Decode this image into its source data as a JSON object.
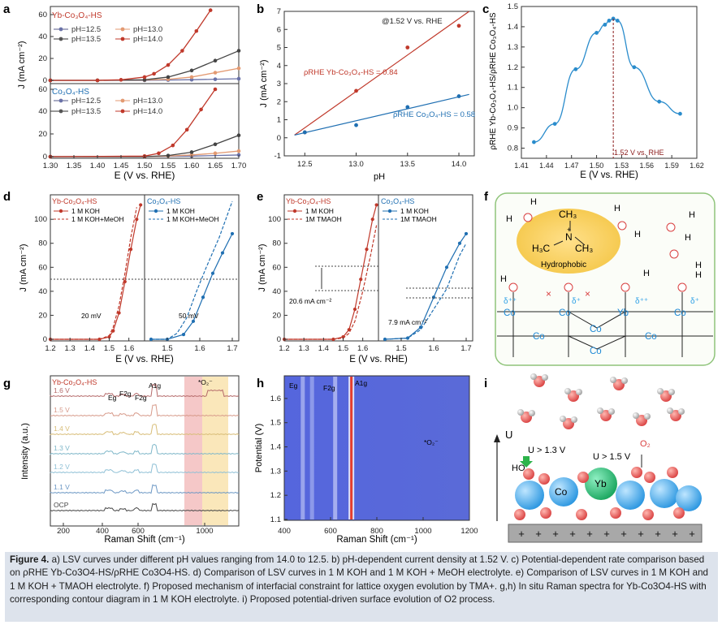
{
  "figure": {
    "panel_labels": {
      "a": "a",
      "b": "b",
      "c": "c",
      "d": "d",
      "e": "e",
      "f": "f",
      "g": "g",
      "h": "h",
      "i": "i"
    },
    "caption": {
      "label": "Figure 4.",
      "text": "a) LSV curves under different pH values ranging from 14.0 to 12.5. b) pH-dependent current density at 1.52 V. c) Potential-dependent rate comparison based on ρRHE Yb-Co3O4-HS/ρRHE Co3O4-HS. d) Comparison of LSV curves in 1 M KOH and 1 M KOH + MeOH electrolyte. e) Comparison of LSV curves in 1 M KOH and 1 M KOH + TMAOH electrolyte. f) Proposed mechanism of interfacial constraint for lattice oxygen evolution by TMA+. g,h) In situ Raman spectra for Yb-Co3O4-HS with corresponding contour diagram in 1 M KOH electrolyte. i) Proposed potential-driven surface evolution of O2 process."
    }
  },
  "panel_a": {
    "top_title": "Yb-Co₃O₄-HS",
    "bottom_title": "Co₃O₄-HS",
    "legend": [
      "pH=12.5",
      "pH=13.0",
      "pH=13.5",
      "pH=14.0"
    ],
    "ylabel": "J (mA cm⁻²)",
    "xlabel": "E (V vs. RHE)",
    "xticks": [
      "1.30",
      "1.35",
      "1.40",
      "1.45",
      "1.50",
      "1.55",
      "1.60",
      "1.65",
      "1.70"
    ],
    "yticks": [
      "0",
      "20",
      "40",
      "60"
    ]
  },
  "panel_b": {
    "annotation": "@1.52 V vs. RHE",
    "label_yb": "ρRHE Yb-Co₃O₄-HS = 0.84",
    "label_co": "ρRHE Co₃O₄-HS = 0.58",
    "xlabel": "pH",
    "ylabel": "J (mA cm⁻²)",
    "xticks": [
      "12.5",
      "13.0",
      "13.5",
      "14.0"
    ],
    "yticks": [
      "-1",
      "0",
      "1",
      "2",
      "3",
      "4",
      "5",
      "6",
      "7"
    ]
  },
  "panel_c": {
    "annotation": "1.52 V vs. RHE",
    "xlabel": "E (V vs. RHE)",
    "ylabel": "ρRHE Yb-Co₃O₄-HS/ρRHE Co₃O₄-HS",
    "xticks": [
      "1.41",
      "1.44",
      "1.47",
      "1.50",
      "1.53",
      "1.56",
      "1.59",
      "1.62"
    ],
    "yticks": [
      "0.8",
      "0.9",
      "1.0",
      "1.1",
      "1.2",
      "1.3",
      "1.4",
      "1.5"
    ]
  },
  "panel_d": {
    "left_title": "Yb-Co₃O₄-HS",
    "left_legend": [
      "1 M KOH",
      "1 M KOH+MeOH"
    ],
    "right_title": "Co₃O₄-HS",
    "right_legend": [
      "1 M KOH",
      "1 M KOH+MeOH"
    ],
    "ann_left": "20 mV",
    "ann_right": "50 mV",
    "ylabel": "J (mA cm⁻²)",
    "xlabel": "E (V vs. RHE)",
    "xticks": [
      "1.2",
      "1.3",
      "1.4",
      "1.5",
      "1.6",
      "1.5",
      "1.6",
      "1.7"
    ],
    "yticks": [
      "0",
      "20",
      "40",
      "60",
      "80",
      "100"
    ]
  },
  "panel_e": {
    "left_title": "Yb-Co₃O₄-HS",
    "left_legend": [
      "1 M KOH",
      "1M TMAOH"
    ],
    "right_title": "Co₃O₄-HS",
    "right_legend": [
      "1 M KOH",
      "1M TMAOH"
    ],
    "ann_left": "20.6 mA cm⁻²",
    "ann_right": "7.9 mA cm⁻²",
    "ylabel": "J (mA cm⁻²)",
    "xlabel": "E (V vs. RHE)",
    "xticks": [
      "1.2",
      "1.3",
      "1.4",
      "1.5",
      "1.6",
      "1.5",
      "1.6",
      "1.7"
    ],
    "yticks": [
      "0",
      "20",
      "40",
      "60",
      "80",
      "100"
    ]
  },
  "panel_f": {
    "ch3_top": "CH₃",
    "h3c": "H₃C",
    "ch3_right": "CH₃",
    "n": "N",
    "plus": "+",
    "hydrophobic": "Hydrophobic",
    "delta_pp": "δ⁺⁺",
    "delta_p": "δ⁺",
    "o": "O",
    "h": "H",
    "co": "Co",
    "yb": "Yb",
    "cross": "×"
  },
  "panel_g": {
    "title": "Yb-Co₃O₄-HS",
    "potentials": [
      "1.6 V",
      "1.5 V",
      "1.4 V",
      "1.3 V",
      "1.2 V",
      "1.1 V",
      "OCP"
    ],
    "peaks": [
      "Eg",
      "F2g",
      "F2g",
      "A1g",
      "*O₂⁻"
    ],
    "xlabel": "Raman Shift (cm⁻¹)",
    "ylabel": "Intensity (a.u.)",
    "xticks": [
      "200",
      "400",
      "600",
      "1000"
    ]
  },
  "panel_h": {
    "peaks": [
      "Eg",
      "F2g",
      "A1g",
      "*O₂⁻"
    ],
    "xlabel": "Raman Shift (cm⁻¹)",
    "ylabel": "Potential (V)",
    "xticks": [
      "400",
      "600",
      "800",
      "1000",
      "1200"
    ],
    "yticks": [
      "1.1",
      "1.2",
      "1.3",
      "1.4",
      "1.5",
      "1.6"
    ]
  },
  "panel_i": {
    "axis": "U",
    "u1": "U > 1.3 V",
    "u2": "U > 1.5 V",
    "o2": "O₂",
    "ho": "HO",
    "co": "Co",
    "yb": "Yb",
    "plus": "+"
  },
  "colors": {
    "red": "#c0392b",
    "blue": "#1f6fb2",
    "dark": "#333333",
    "orange": "#e39a72"
  },
  "chart_data": [
    {
      "panel": "a-top",
      "type": "line",
      "title": "Yb-Co₃O₄-HS",
      "xlabel": "E (V vs. RHE)",
      "ylabel": "J (mA cm⁻²)",
      "xlim": [
        1.3,
        1.7
      ],
      "ylim": [
        0,
        60
      ],
      "series": [
        {
          "name": "pH=12.5",
          "x": [
            1.3,
            1.4,
            1.5,
            1.55,
            1.6,
            1.65,
            1.7
          ],
          "y": [
            0,
            0,
            0,
            0.3,
            0.6,
            1.0,
            1.5
          ]
        },
        {
          "name": "pH=13.0",
          "x": [
            1.3,
            1.4,
            1.5,
            1.55,
            1.6,
            1.65,
            1.7
          ],
          "y": [
            0,
            0,
            0.3,
            1,
            3,
            7,
            11
          ]
        },
        {
          "name": "pH=13.5",
          "x": [
            1.3,
            1.4,
            1.5,
            1.55,
            1.6,
            1.65,
            1.7
          ],
          "y": [
            0,
            0,
            0.5,
            3,
            9,
            18,
            27
          ]
        },
        {
          "name": "pH=14.0",
          "x": [
            1.3,
            1.4,
            1.45,
            1.5,
            1.52,
            1.55,
            1.58,
            1.61,
            1.64
          ],
          "y": [
            0,
            0,
            0.5,
            3,
            6,
            14,
            27,
            45,
            64
          ]
        }
      ]
    },
    {
      "panel": "a-bottom",
      "type": "line",
      "title": "Co₃O₄-HS",
      "xlabel": "E (V vs. RHE)",
      "ylabel": "J (mA cm⁻²)",
      "xlim": [
        1.3,
        1.7
      ],
      "ylim": [
        0,
        60
      ],
      "series": [
        {
          "name": "pH=12.5",
          "x": [
            1.3,
            1.5,
            1.6,
            1.7
          ],
          "y": [
            0,
            0,
            0.5,
            1.5
          ]
        },
        {
          "name": "pH=13.0",
          "x": [
            1.3,
            1.5,
            1.55,
            1.6,
            1.65,
            1.7
          ],
          "y": [
            0,
            0,
            0.5,
            1.5,
            3,
            5
          ]
        },
        {
          "name": "pH=13.5",
          "x": [
            1.3,
            1.5,
            1.55,
            1.6,
            1.65,
            1.7
          ],
          "y": [
            0,
            0,
            1,
            4,
            11,
            19
          ]
        },
        {
          "name": "pH=14.0",
          "x": [
            1.3,
            1.5,
            1.53,
            1.56,
            1.59,
            1.62,
            1.65
          ],
          "y": [
            0,
            0.5,
            3,
            10,
            24,
            42,
            60
          ]
        }
      ]
    },
    {
      "panel": "b",
      "type": "scatter",
      "xlabel": "pH",
      "ylabel": "J (mA cm⁻²)",
      "xlim": [
        12.3,
        14.15
      ],
      "ylim": [
        -1,
        7
      ],
      "series": [
        {
          "name": "Yb-Co₃O₄-HS",
          "x": [
            12.5,
            13.0,
            13.5,
            14.0
          ],
          "y": [
            0.3,
            2.6,
            5.0,
            6.2
          ],
          "fit": [
            [
              12.4,
              0.15
            ],
            [
              14.1,
              7.0
            ]
          ]
        },
        {
          "name": "Co₃O₄-HS",
          "x": [
            12.5,
            13.0,
            13.5,
            14.0
          ],
          "y": [
            0.3,
            0.7,
            1.7,
            2.3
          ],
          "fit": [
            [
              12.4,
              0.15
            ],
            [
              14.1,
              2.4
            ]
          ]
        }
      ]
    },
    {
      "panel": "c",
      "type": "line",
      "xlabel": "E (V vs. RHE)",
      "ylabel": "ρRHE Yb-Co₃O₄-HS/ρRHE Co₃O₄-HS",
      "xlim": [
        1.41,
        1.62
      ],
      "ylim": [
        0.75,
        1.5
      ],
      "series": [
        {
          "name": "ratio",
          "x": [
            1.425,
            1.45,
            1.475,
            1.5,
            1.51,
            1.515,
            1.52,
            1.525,
            1.545,
            1.575,
            1.6
          ],
          "y": [
            0.83,
            0.92,
            1.19,
            1.37,
            1.41,
            1.43,
            1.44,
            1.43,
            1.2,
            1.03,
            0.97
          ]
        }
      ]
    },
    {
      "panel": "d",
      "type": "line",
      "xlabel": "E (V vs. RHE)",
      "ylabel": "J (mA cm⁻²)",
      "series": [
        {
          "name": "Yb-Co₃O₄-HS 1 M KOH",
          "x": [
            1.2,
            1.45,
            1.5,
            1.52,
            1.55,
            1.58,
            1.61,
            1.64,
            1.66
          ],
          "y": [
            0,
            0,
            2,
            7,
            22,
            48,
            75,
            100,
            112
          ]
        },
        {
          "name": "Yb-Co₃O₄-HS 1 M KOH+MeOH",
          "x": [
            1.2,
            1.45,
            1.5,
            1.52,
            1.55,
            1.58,
            1.61,
            1.64
          ],
          "y": [
            0,
            0,
            3,
            10,
            28,
            55,
            85,
            110
          ]
        },
        {
          "name": "Co₃O₄-HS 1 M KOH",
          "x": [
            1.45,
            1.5,
            1.55,
            1.58,
            1.61,
            1.64,
            1.67,
            1.7
          ],
          "y": [
            0,
            0,
            4,
            15,
            35,
            55,
            72,
            88
          ]
        },
        {
          "name": "Co₃O₄-HS 1 M KOH+MeOH",
          "x": [
            1.45,
            1.5,
            1.53,
            1.56,
            1.59,
            1.62,
            1.66,
            1.7
          ],
          "y": [
            0,
            0,
            5,
            18,
            40,
            60,
            85,
            115
          ]
        }
      ]
    },
    {
      "panel": "e",
      "type": "line",
      "xlabel": "E (V vs. RHE)",
      "ylabel": "J (mA cm⁻²)",
      "series": [
        {
          "name": "Yb-Co₃O₄-HS 1 M KOH",
          "x": [
            1.2,
            1.45,
            1.5,
            1.53,
            1.56,
            1.59,
            1.62,
            1.65,
            1.67
          ],
          "y": [
            0,
            0,
            2,
            8,
            25,
            50,
            75,
            100,
            112
          ]
        },
        {
          "name": "Yb-Co₃O₄-HS 1M TMAOH",
          "x": [
            1.2,
            1.45,
            1.5,
            1.53,
            1.56,
            1.6,
            1.64,
            1.67
          ],
          "y": [
            0,
            0,
            1,
            5,
            15,
            40,
            70,
            95
          ]
        },
        {
          "name": "Co₃O₄-HS 1 M KOH",
          "x": [
            1.45,
            1.52,
            1.56,
            1.6,
            1.64,
            1.68,
            1.7
          ],
          "y": [
            0,
            1,
            10,
            35,
            60,
            80,
            88
          ]
        },
        {
          "name": "Co₃O₄-HS 1M TMAOH",
          "x": [
            1.45,
            1.52,
            1.56,
            1.6,
            1.64,
            1.68,
            1.7
          ],
          "y": [
            0,
            1,
            8,
            25,
            42,
            70,
            80
          ]
        }
      ]
    },
    {
      "panel": "g",
      "type": "line",
      "xlabel": "Raman Shift (cm⁻¹)",
      "ylabel": "Intensity (a.u.)",
      "categories": [
        "1.6 V",
        "1.5 V",
        "1.4 V",
        "1.3 V",
        "1.2 V",
        "1.1 V",
        "OCP"
      ],
      "peaks_cm": {
        "Eg": 480,
        "F2g": [
          520,
          620
        ],
        "A1g": 690,
        "*O₂⁻": 1050
      }
    },
    {
      "panel": "h",
      "type": "heatmap",
      "xlabel": "Raman Shift (cm⁻¹)",
      "ylabel": "Potential (V)",
      "xlim": [
        400,
        1200
      ],
      "ylim": [
        1.1,
        1.65
      ],
      "bands_cm": [
        480,
        520,
        620,
        690
      ]
    }
  ]
}
